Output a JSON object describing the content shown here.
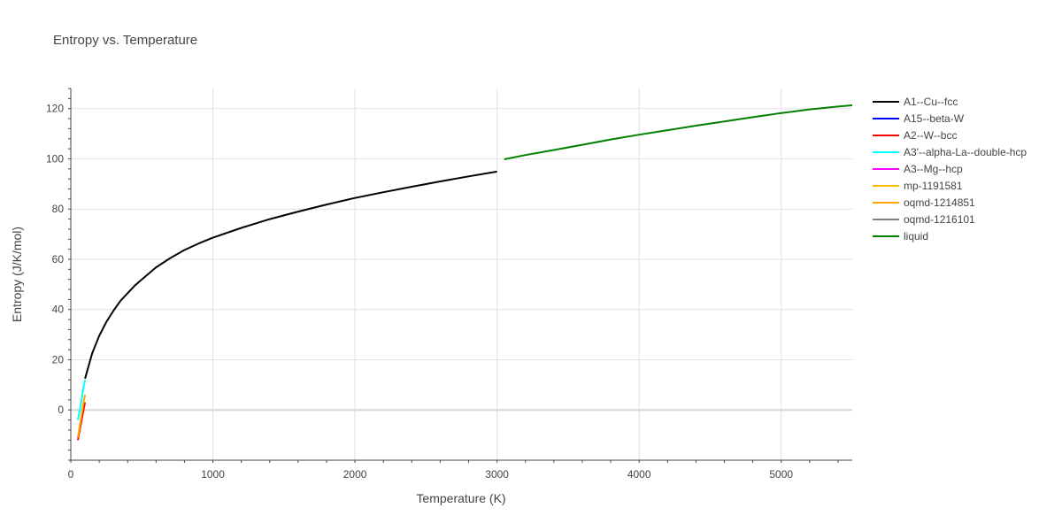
{
  "chart_data": {
    "type": "line",
    "title": "Entropy vs. Temperature",
    "xlabel": "Temperature (K)",
    "ylabel": "Entropy (J/K/mol)",
    "xlim": [
      0,
      5500
    ],
    "ylim": [
      -20,
      128
    ],
    "xticks": [
      0,
      1000,
      2000,
      3000,
      4000,
      5000
    ],
    "yticks": [
      0,
      20,
      40,
      60,
      80,
      100,
      120
    ],
    "grid": true,
    "legend_position": "right",
    "series": [
      {
        "name": "A1--Cu--fcc",
        "color": "#000000",
        "x": [
          100,
          150,
          200,
          250,
          300,
          350,
          400,
          450,
          500,
          600,
          700,
          800,
          900,
          1000,
          1200,
          1400,
          1600,
          1800,
          2000,
          2200,
          2400,
          2600,
          2800,
          3000
        ],
        "y": [
          12.5,
          22.5,
          29.5,
          35,
          39.5,
          43.5,
          46.5,
          49.5,
          52,
          56.8,
          60.5,
          63.7,
          66.3,
          68.6,
          72.5,
          76,
          79,
          81.8,
          84.4,
          86.7,
          88.9,
          91,
          93,
          94.9
        ]
      },
      {
        "name": "A15--beta-W",
        "color": "#0000ff",
        "x": [],
        "y": []
      },
      {
        "name": "A2--W--bcc",
        "color": "#ff0000",
        "x": [
          50,
          60,
          70,
          80,
          90,
          100
        ],
        "y": [
          -12,
          -9,
          -6,
          -3,
          0,
          3
        ]
      },
      {
        "name": "A3'--alpha-La--double-hcp",
        "color": "#00ffff",
        "x": [
          50,
          60,
          70,
          80,
          90,
          100
        ],
        "y": [
          -4,
          -1,
          2,
          5.5,
          9,
          12
        ]
      },
      {
        "name": "A3--Mg--hcp",
        "color": "#ff00ff",
        "x": [],
        "y": []
      },
      {
        "name": "mp-1191581",
        "color": "#ffbf00",
        "x": [],
        "y": []
      },
      {
        "name": "oqmd-1214851",
        "color": "#ffa500",
        "x": [
          50,
          60,
          70,
          80,
          90,
          100
        ],
        "y": [
          -11,
          -7.5,
          -4,
          -0.5,
          3,
          6
        ]
      },
      {
        "name": "oqmd-1216101",
        "color": "#808080",
        "x": [],
        "y": []
      },
      {
        "name": "liquid",
        "color": "#008000",
        "x": [
          3050,
          3200,
          3400,
          3600,
          3800,
          4000,
          4200,
          4400,
          4600,
          4800,
          5000,
          5200,
          5400,
          5500
        ],
        "y": [
          99.8,
          101.5,
          103.5,
          105.6,
          107.7,
          109.6,
          111.4,
          113.2,
          114.9,
          116.6,
          118.2,
          119.7,
          120.8,
          121.3
        ]
      }
    ]
  }
}
